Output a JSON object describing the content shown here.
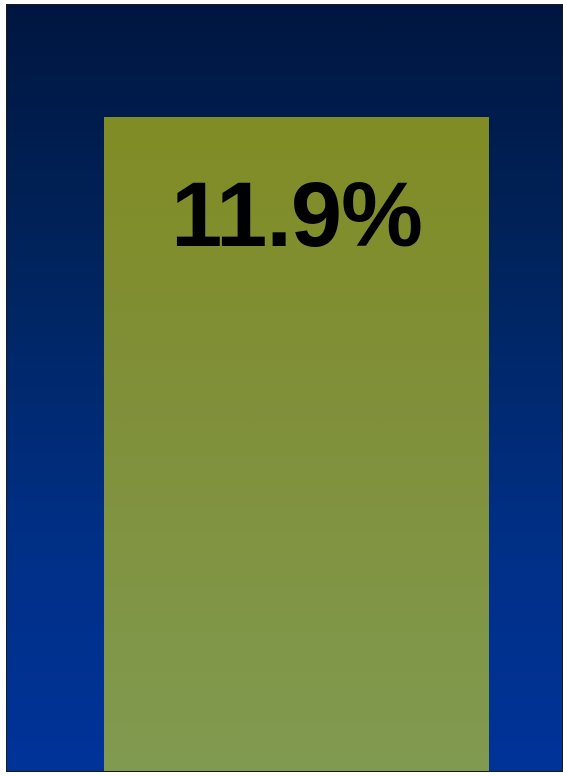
{
  "chart_data": {
    "type": "bar",
    "categories": [
      ""
    ],
    "values": [
      11.9
    ],
    "data_labels": [
      "11.9%"
    ],
    "title": "",
    "xlabel": "",
    "ylabel": "",
    "grid": false,
    "legend": "none"
  },
  "colors": {
    "background_top": "#001640",
    "background_bottom": "#003399",
    "bar_top": "#808c24",
    "bar_bottom": "#809a50",
    "label": "#000000"
  }
}
